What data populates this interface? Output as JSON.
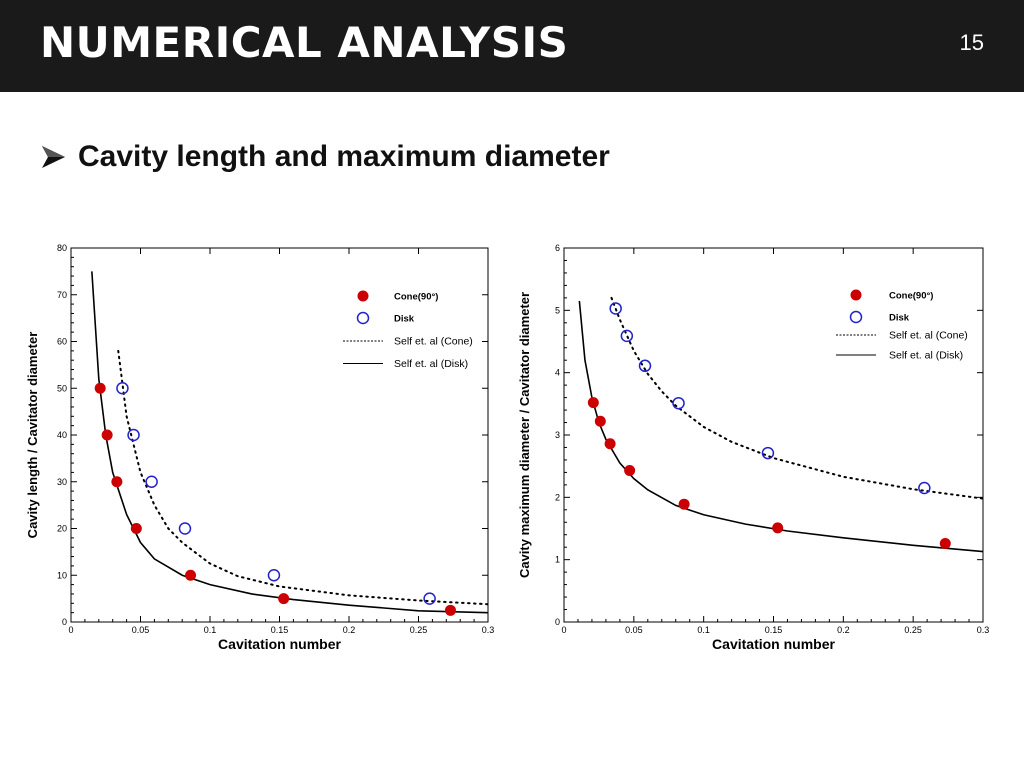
{
  "header": {
    "title": "NUMERICAL ANALYSIS",
    "page_number": "15"
  },
  "section": {
    "bullet_icon": "arrow-bullet-icon",
    "heading": "Cavity length and maximum diameter"
  },
  "colors": {
    "header_bg": "#1a1a1a",
    "cone_marker": "#cc0000",
    "disk_marker": "#2222cc"
  },
  "chart_data": [
    {
      "type": "scatter",
      "xlabel": "Cavitation number",
      "ylabel": "Cavity length / Cavitator diameter",
      "xlim": [
        0,
        0.3
      ],
      "ylim": [
        0,
        80
      ],
      "xticks": [
        "0",
        "0.05",
        "0.1",
        "0.15",
        "0.2",
        "0.25",
        "0.3"
      ],
      "yticks": [
        "0",
        "10",
        "20",
        "30",
        "40",
        "50",
        "60",
        "70",
        "80"
      ],
      "legend_position": "top-right",
      "series": [
        {
          "name": "Cone(90°)",
          "kind": "filled-circle",
          "x": [
            0.021,
            0.026,
            0.033,
            0.047,
            0.086,
            0.153,
            0.273
          ],
          "y": [
            50,
            40,
            30,
            20,
            10,
            5,
            2.5
          ]
        },
        {
          "name": "Disk",
          "kind": "open-circle",
          "x": [
            0.037,
            0.045,
            0.058,
            0.082,
            0.146,
            0.258
          ],
          "y": [
            50,
            40,
            30,
            20,
            10,
            5
          ]
        },
        {
          "name": "Self et. al (Cone)",
          "kind": "dotted-line",
          "x": [
            0.034,
            0.04,
            0.05,
            0.06,
            0.07,
            0.08,
            0.1,
            0.12,
            0.15,
            0.2,
            0.25,
            0.3
          ],
          "y": [
            58,
            44,
            32,
            25,
            20,
            17,
            12.5,
            9.8,
            7.6,
            5.7,
            4.6,
            3.8
          ]
        },
        {
          "name": "Self et. al (Disk)",
          "kind": "solid-line",
          "x": [
            0.015,
            0.02,
            0.025,
            0.03,
            0.04,
            0.05,
            0.06,
            0.08,
            0.1,
            0.13,
            0.16,
            0.2,
            0.25,
            0.3
          ],
          "y": [
            75,
            52,
            40,
            32,
            23,
            17,
            13.5,
            10,
            8,
            6,
            4.8,
            3.6,
            2.4,
            2
          ]
        }
      ]
    },
    {
      "type": "scatter",
      "xlabel": "Cavitation number",
      "ylabel": "Cavity maximum diameter /  Cavitator diameter",
      "xlim": [
        0,
        0.3
      ],
      "ylim": [
        0,
        6
      ],
      "xticks": [
        "0",
        "0.05",
        "0.1",
        "0.15",
        "0.2",
        "0.25",
        "0.3"
      ],
      "yticks": [
        "0",
        "1",
        "2",
        "3",
        "4",
        "5",
        "6"
      ],
      "legend_position": "top-right",
      "series": [
        {
          "name": "Cone(90°)",
          "kind": "filled-circle",
          "x": [
            0.021,
            0.026,
            0.033,
            0.047,
            0.086,
            0.153,
            0.273
          ],
          "y": [
            3.52,
            3.22,
            2.86,
            2.43,
            1.89,
            1.51,
            1.26
          ]
        },
        {
          "name": "Disk",
          "kind": "open-circle",
          "x": [
            0.037,
            0.045,
            0.058,
            0.082,
            0.146,
            0.258
          ],
          "y": [
            5.03,
            4.59,
            4.11,
            3.51,
            2.71,
            2.15
          ]
        },
        {
          "name": "Self et. al (Cone)",
          "kind": "dotted-line",
          "x": [
            0.034,
            0.04,
            0.05,
            0.06,
            0.07,
            0.08,
            0.1,
            0.12,
            0.15,
            0.2,
            0.25,
            0.3
          ],
          "y": [
            5.2,
            4.85,
            4.35,
            3.98,
            3.7,
            3.47,
            3.13,
            2.89,
            2.63,
            2.33,
            2.13,
            1.98
          ]
        },
        {
          "name": "Self et. al (Disk)",
          "kind": "solid-line",
          "x": [
            0.011,
            0.015,
            0.02,
            0.025,
            0.03,
            0.04,
            0.05,
            0.06,
            0.08,
            0.1,
            0.13,
            0.16,
            0.2,
            0.25,
            0.3
          ],
          "y": [
            5.15,
            4.2,
            3.6,
            3.2,
            2.93,
            2.55,
            2.3,
            2.12,
            1.87,
            1.72,
            1.57,
            1.46,
            1.35,
            1.23,
            1.13
          ]
        }
      ]
    }
  ]
}
